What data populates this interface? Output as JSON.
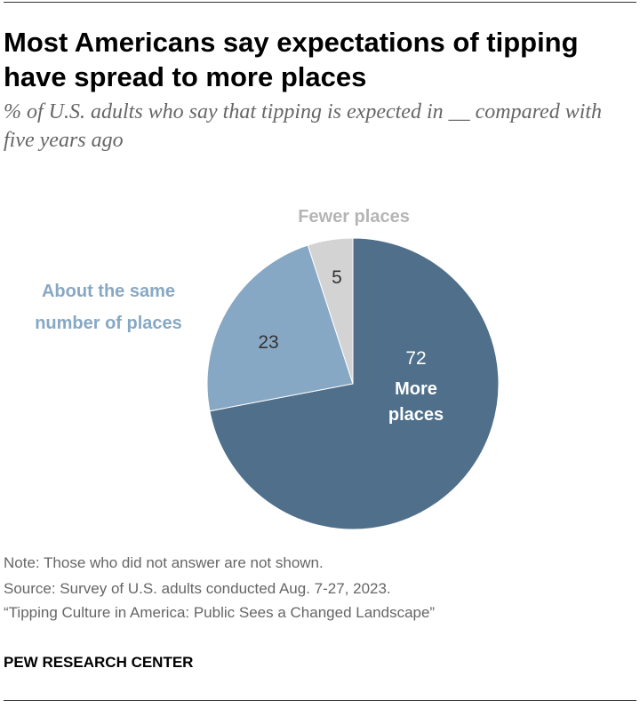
{
  "title": "Most Americans say expectations of tipping have spread to more places",
  "subtitle": "% of U.S. adults who say that tipping is expected in __ compared with five years ago",
  "chart_data": {
    "type": "pie",
    "title": "Most Americans say expectations of tipping have spread to more places",
    "slices": [
      {
        "label": "More places",
        "value": 72,
        "color": "#4f6f8a"
      },
      {
        "label": "About the same number of places",
        "value": 23,
        "color": "#87a8c4"
      },
      {
        "label": "Fewer places",
        "value": 5,
        "color": "#d3d3d3"
      }
    ],
    "start": "12 o'clock, clockwise"
  },
  "labels": {
    "more": [
      "More",
      "places"
    ],
    "same": [
      "About the same",
      "number of places"
    ],
    "fewer": "Fewer places"
  },
  "footer": {
    "note": "Note: Those who did not answer are not shown.",
    "source": "Source: Survey of U.S. adults conducted Aug. 7-27, 2023.",
    "report": "“Tipping Culture in America: Public Sees a Changed Landscape”",
    "brand": "PEW RESEARCH CENTER"
  }
}
